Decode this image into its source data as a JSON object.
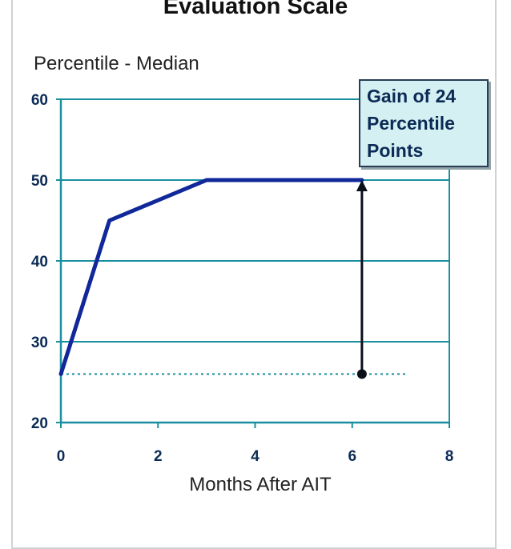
{
  "chart_data": {
    "type": "line",
    "title": "Evaluation Scale",
    "ylabel": "Percentile - Median",
    "xlabel": "Months After AIT",
    "xlim": [
      0,
      8
    ],
    "ylim": [
      20,
      60
    ],
    "x_ticks": [
      0,
      2,
      4,
      6,
      8
    ],
    "y_ticks": [
      20,
      30,
      40,
      50,
      60
    ],
    "grid": "horizontal",
    "series": [
      {
        "x": [
          0,
          1,
          2,
          3,
          6.2
        ],
        "y": [
          26,
          45,
          47.5,
          50,
          50
        ]
      }
    ],
    "baseline": {
      "y": 26,
      "x_from": 0,
      "x_to": 7.1,
      "style": "dotted"
    },
    "arrow": {
      "x": 6.2,
      "from_y": 26,
      "to_y": 50
    },
    "annotation": {
      "lines": [
        "Gain of 24",
        "Percentile",
        "Points"
      ]
    },
    "colors": {
      "line": "#10289a",
      "axis": "#1a8fa0",
      "text": "#0b2a55",
      "annotation_bg": "#d5f0f3"
    }
  }
}
